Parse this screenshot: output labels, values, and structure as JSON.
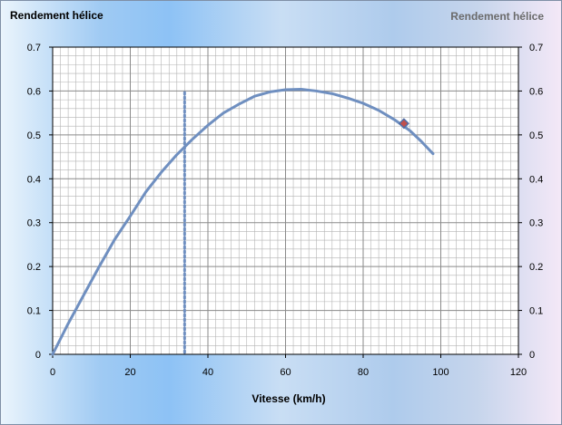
{
  "chart_data": {
    "type": "line",
    "title_left": "Rendement hélice",
    "title_right": "Rendement hélice",
    "xlabel": "Vitesse (km/h)",
    "ylabel": "",
    "xlim": [
      0,
      120
    ],
    "ylim": [
      0,
      0.7
    ],
    "x_ticks": [
      "0",
      "20",
      "40",
      "60",
      "80",
      "100",
      "120"
    ],
    "y_ticks": [
      "0",
      "0.1",
      "0.2",
      "0.3",
      "0.4",
      "0.5",
      "0.6",
      "0.7"
    ],
    "grid": true,
    "series": [
      {
        "x": [
          0,
          4,
          8,
          12,
          16,
          20,
          24,
          28,
          32,
          36,
          40,
          44,
          48,
          52,
          56,
          60,
          64,
          68,
          72,
          76,
          80,
          84,
          88,
          92,
          95,
          98
        ],
        "y": [
          0,
          0.07,
          0.135,
          0.2,
          0.262,
          0.315,
          0.37,
          0.415,
          0.455,
          0.49,
          0.522,
          0.55,
          0.57,
          0.588,
          0.598,
          0.603,
          0.604,
          0.6,
          0.594,
          0.584,
          0.572,
          0.556,
          0.535,
          0.51,
          0.485,
          0.457
        ],
        "color": "#6f8fc0"
      }
    ],
    "vertical_marker": {
      "x": 34,
      "y_max": 0.6,
      "color": "#6f8fc0",
      "style": "dotted"
    },
    "point_marker": {
      "x": 90.5,
      "y": 0.526,
      "color": "#c0504d",
      "shape": "diamond"
    },
    "colors": {
      "line": "#6f8fc0",
      "plot_background": "#ffffff",
      "grid": "#b3b3b3",
      "title_right": "#6b6b6b"
    }
  }
}
